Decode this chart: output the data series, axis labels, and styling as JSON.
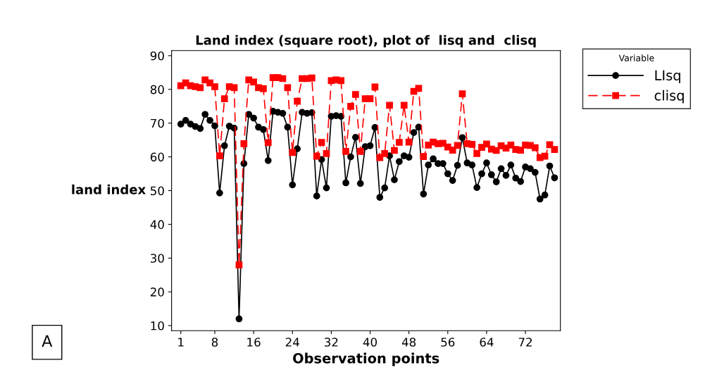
{
  "chart_data": {
    "type": "line",
    "title": "Land index (square root), plot of  lisq and  clisq",
    "xlabel": "Observation points",
    "ylabel": "land index",
    "legend_title": "Variable",
    "legend": "top right",
    "annotations": [
      "A"
    ],
    "x": [
      1,
      2,
      3,
      4,
      5,
      6,
      7,
      8,
      9,
      10,
      11,
      12,
      13,
      14,
      15,
      16,
      17,
      18,
      19,
      20,
      21,
      22,
      23,
      24,
      25,
      26,
      27,
      28,
      29,
      30,
      31,
      32,
      33,
      34,
      35,
      36,
      37,
      38,
      39,
      40,
      41,
      42,
      43,
      44,
      45,
      46,
      47,
      48,
      49,
      50,
      51,
      52,
      53,
      54,
      55,
      56,
      57,
      58,
      59,
      60,
      61,
      62,
      63,
      64,
      65,
      66,
      67,
      68,
      69,
      70,
      71,
      72,
      73,
      74,
      75,
      76,
      77,
      78
    ],
    "xlim": [
      -0.9,
      79.2
    ],
    "xticks": [
      1,
      8,
      16,
      24,
      32,
      40,
      48,
      56,
      64,
      72
    ],
    "ylim": [
      8.5,
      91.5
    ],
    "yticks": [
      10,
      20,
      30,
      40,
      50,
      60,
      70,
      80,
      90
    ],
    "grid": false,
    "series": [
      {
        "name": "LIsq",
        "color": "#000000",
        "marker": "circle",
        "line_style": "solid",
        "values": [
          69.7,
          70.8,
          69.7,
          69.0,
          68.4,
          72.6,
          70.8,
          69.2,
          49.3,
          63.3,
          69.1,
          68.5,
          12,
          58,
          72.6,
          71.5,
          68.8,
          68.1,
          58.9,
          73.5,
          73.2,
          72.9,
          68.8,
          51.7,
          62.4,
          73.2,
          72.9,
          73.1,
          48.4,
          59.2,
          50.8,
          72.0,
          72.2,
          72.0,
          52.3,
          60,
          65.8,
          52.1,
          63,
          63.3,
          68.7,
          48,
          50.8,
          60.3,
          53.2,
          58.6,
          60.3,
          59.9,
          67.2,
          68.8,
          49,
          57.6,
          59.4,
          58.0,
          58.0,
          55,
          53,
          57.5,
          65.7,
          58.2,
          57.6,
          50.9,
          55,
          58.2,
          54.7,
          52.6,
          56.5,
          54.5,
          57.6,
          53.7,
          52.7,
          57,
          56.5,
          55.4,
          47.5,
          48.7,
          57.3,
          53.8
        ]
      },
      {
        "name": "clisq",
        "color": "#ff0000",
        "marker": "square",
        "line_style": "dashed",
        "values": [
          81.1,
          81.9,
          81.1,
          80.8,
          80.5,
          82.8,
          81.9,
          80.8,
          60.3,
          77.2,
          80.8,
          80.5,
          28,
          63.9,
          82.8,
          82.2,
          80.5,
          80.2,
          64.2,
          83.5,
          83.5,
          83.2,
          80.5,
          61.3,
          76.5,
          83.2,
          83.2,
          83.4,
          60.2,
          64.3,
          61.0,
          82.6,
          82.8,
          82.6,
          61.6,
          75,
          78.5,
          61.6,
          77.2,
          77.2,
          80.7,
          59.8,
          61.0,
          75.3,
          61.9,
          64.3,
          75.3,
          64.4,
          79.4,
          80.3,
          60.1,
          63.5,
          64.4,
          63.9,
          64.0,
          62.9,
          62.0,
          63.4,
          78.7,
          63.9,
          63.7,
          61.0,
          62.8,
          63.8,
          62.3,
          61.9,
          63.3,
          62.6,
          63.5,
          62.2,
          62,
          63.5,
          63.4,
          62.7,
          59.8,
          60.2,
          63.6,
          62.2
        ]
      }
    ]
  }
}
